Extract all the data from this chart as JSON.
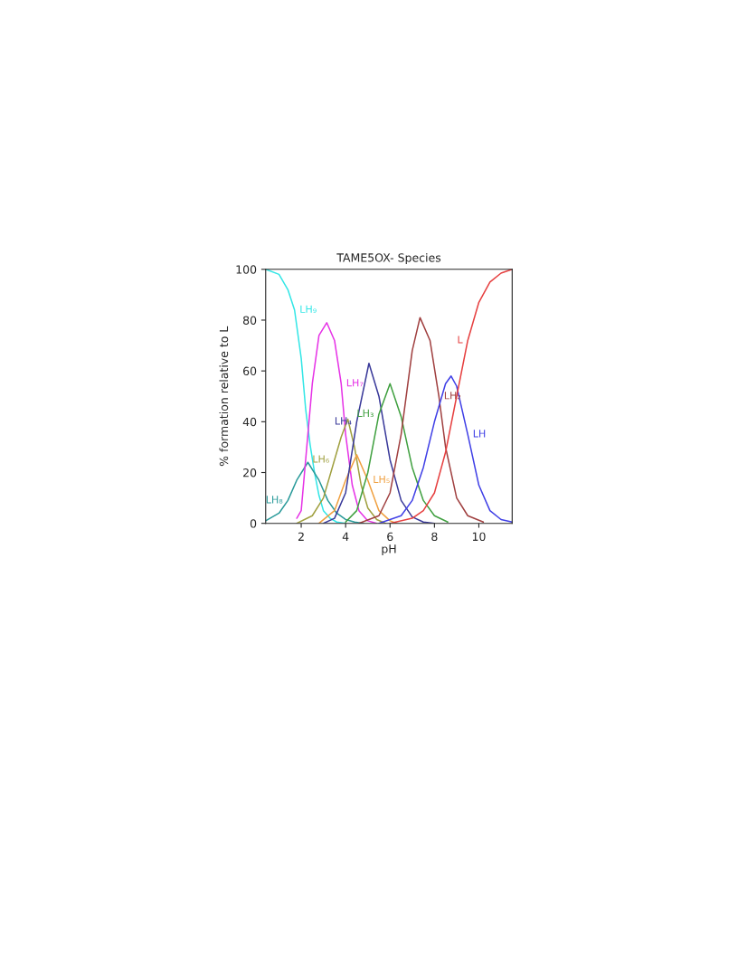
{
  "chart_data": {
    "type": "line",
    "title": "TAME5OX- Species",
    "xlabel": "pH",
    "ylabel": "% formation relative to L",
    "xlim": [
      0.4,
      11.5
    ],
    "xticks": [
      2,
      4,
      6,
      8,
      10
    ],
    "ylim": [
      0,
      100
    ],
    "yticks": [
      0,
      20,
      40,
      60,
      80,
      100
    ],
    "grid": false,
    "legend": false,
    "marker": "none",
    "line_style": "solid",
    "series": [
      {
        "color": "#33e6e6",
        "x": [
          0.4,
          1.0,
          1.4,
          1.7,
          2.0,
          2.2,
          2.3,
          2.4,
          2.6,
          2.8,
          3.0,
          3.3,
          3.6,
          4.0
        ],
        "values": [
          100,
          98,
          92,
          84,
          65,
          45,
          38,
          31,
          20,
          11,
          5,
          2,
          0.5,
          0
        ]
      },
      {
        "color": "#2a9a9a",
        "x": [
          0.4,
          1.0,
          1.4,
          1.8,
          2.3,
          2.8,
          3.2,
          3.6,
          4.0,
          4.4,
          4.8
        ],
        "values": [
          1,
          4,
          9,
          17,
          24,
          17,
          9,
          4,
          1.5,
          0.5,
          0
        ]
      },
      {
        "color": "#e633e6",
        "x": [
          1.8,
          2.0,
          2.3,
          2.5,
          2.8,
          3.15,
          3.5,
          3.8,
          4.0,
          4.3,
          4.6,
          5.0,
          5.4
        ],
        "values": [
          2,
          5,
          35,
          55,
          74,
          79,
          72,
          55,
          35,
          15,
          5,
          1,
          0
        ]
      },
      {
        "color": "#a0a040",
        "x": [
          1.8,
          2.5,
          3.0,
          3.5,
          3.8,
          4.1,
          4.4,
          4.7,
          5.0,
          5.4,
          5.8
        ],
        "values": [
          0,
          3,
          10,
          25,
          34,
          41,
          30,
          15,
          6,
          1.5,
          0
        ]
      },
      {
        "color": "#f0a040",
        "x": [
          2.8,
          3.5,
          4.0,
          4.5,
          5.0,
          5.5,
          6.0,
          6.3
        ],
        "values": [
          0,
          5,
          17,
          27,
          17,
          5,
          1,
          0
        ]
      },
      {
        "color": "#3a3a9a",
        "x": [
          3.0,
          3.5,
          4.0,
          4.5,
          5.05,
          5.5,
          6.0,
          6.5,
          7.0,
          7.5,
          8.0
        ],
        "values": [
          0,
          2,
          12,
          40,
          63,
          50,
          25,
          9,
          2.5,
          0.5,
          0
        ]
      },
      {
        "color": "#40a040",
        "x": [
          4.0,
          4.5,
          5.0,
          5.5,
          6.0,
          6.5,
          7.0,
          7.5,
          8.0,
          8.6
        ],
        "values": [
          0.5,
          5,
          20,
          43,
          55,
          42,
          22,
          9,
          3,
          0.5
        ]
      },
      {
        "color": "#a04040",
        "x": [
          4.6,
          5.5,
          6.0,
          6.5,
          7.0,
          7.35,
          7.8,
          8.2,
          8.5,
          9.0,
          9.5,
          10.2
        ],
        "values": [
          0,
          3,
          12,
          35,
          68,
          81,
          72,
          50,
          30,
          10,
          3,
          0.5
        ]
      },
      {
        "color": "#4040e6",
        "x": [
          5.5,
          6.5,
          7.0,
          7.5,
          8.0,
          8.5,
          8.75,
          9.0,
          9.5,
          10.0,
          10.5,
          11.0,
          11.5
        ],
        "values": [
          0,
          3,
          9,
          22,
          40,
          55,
          58,
          54,
          35,
          15,
          5,
          1.5,
          0.5
        ]
      },
      {
        "color": "#e64040",
        "x": [
          6.0,
          7.0,
          7.5,
          8.0,
          8.5,
          9.0,
          9.5,
          10.0,
          10.5,
          11.0,
          11.5
        ],
        "values": [
          0,
          2,
          5,
          12,
          28,
          50,
          72,
          87,
          95,
          98.5,
          100
        ]
      }
    ],
    "annotations": [
      {
        "text": "LH₉",
        "x": 1.7,
        "y": 84
      },
      {
        "text": "LH₈",
        "x": 1.4,
        "y": 9
      },
      {
        "text": "LH₇",
        "x": 3.8,
        "y": 55
      },
      {
        "text": "LH₆",
        "x": 3.5,
        "y": 25
      },
      {
        "text": "LH₅",
        "x": 5.0,
        "y": 17
      },
      {
        "text": "LH₄",
        "x": 4.5,
        "y": 40
      },
      {
        "text": "LH₃",
        "x": 5.5,
        "y": 43
      },
      {
        "text": "LH₂",
        "x": 8.2,
        "y": 50
      },
      {
        "text": "LH",
        "x": 9.5,
        "y": 35
      },
      {
        "text": "L",
        "x": 9.5,
        "y": 72
      }
    ]
  }
}
